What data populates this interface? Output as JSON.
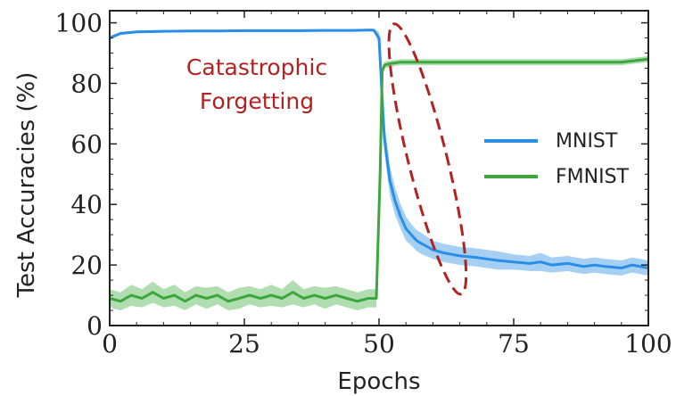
{
  "chart_data": {
    "type": "line",
    "title": "",
    "xlabel": "Epochs",
    "ylabel": "Test Accuracies (%)",
    "xlim": [
      0,
      100
    ],
    "ylim": [
      0,
      104
    ],
    "xticks": [
      0,
      25,
      50,
      75,
      100
    ],
    "yticks": [
      0,
      20,
      40,
      60,
      80,
      100
    ],
    "xtick_labels": [
      "0",
      "25",
      "50",
      "75",
      "100"
    ],
    "ytick_labels": [
      "0",
      "20",
      "40",
      "60",
      "80",
      "100"
    ],
    "grid": false,
    "legend": {
      "placement": "right",
      "entries": [
        "MNIST",
        "FMNIST"
      ]
    },
    "annotation": {
      "lines": [
        "Catastrophic",
        "Forgetting"
      ],
      "color": "#b22222",
      "ellipse_center": [
        59,
        55
      ],
      "ellipse_semi_axes": [
        3.6,
        46
      ],
      "ellipse_rotation_deg": -14
    },
    "series": [
      {
        "name": "MNIST",
        "color": "#2a8ee6",
        "band_color": "#7fbcf0",
        "x": [
          0,
          2,
          5,
          10,
          15,
          20,
          25,
          30,
          35,
          40,
          45,
          48,
          49,
          50,
          50.5,
          51,
          52,
          53,
          54,
          55,
          56,
          57,
          58,
          60,
          62,
          65,
          68,
          70,
          72,
          75,
          78,
          80,
          82,
          85,
          88,
          90,
          92,
          95,
          97,
          100
        ],
        "y": [
          95,
          96.5,
          97,
          97.2,
          97.3,
          97.3,
          97.4,
          97.4,
          97.4,
          97.5,
          97.5,
          97.6,
          97.6,
          95,
          78,
          62,
          48,
          41,
          36,
          32,
          30,
          28,
          27,
          25,
          24,
          23,
          22.5,
          22,
          21.5,
          21,
          20.5,
          21,
          20,
          20.5,
          19.5,
          20,
          19.5,
          19,
          20,
          19
        ],
        "band": [
          0.6,
          0.5,
          0.4,
          0.4,
          0.4,
          0.4,
          0.4,
          0.4,
          0.4,
          0.4,
          0.4,
          0.4,
          0.4,
          2,
          5,
          5,
          5,
          4.5,
          4,
          4,
          3.5,
          3.5,
          3.5,
          3,
          3,
          3,
          3,
          3,
          3,
          2.5,
          2.5,
          3,
          2.5,
          2.5,
          2.5,
          2.5,
          2.5,
          2.5,
          2.5,
          2.5
        ]
      },
      {
        "name": "FMNIST",
        "color": "#3da63d",
        "band_color": "#8fd08f",
        "x": [
          0,
          2,
          4,
          6,
          8,
          10,
          12,
          14,
          16,
          18,
          20,
          22,
          24,
          26,
          28,
          30,
          32,
          34,
          36,
          38,
          40,
          42,
          44,
          46,
          48,
          49.5,
          50.2,
          50.6,
          51,
          52,
          54,
          56,
          60,
          65,
          70,
          75,
          80,
          85,
          90,
          95,
          100
        ],
        "y": [
          9,
          8,
          10,
          9,
          11,
          9,
          10,
          8,
          10,
          9,
          10,
          8,
          9,
          10,
          9,
          10,
          9,
          11,
          9,
          10,
          9,
          10,
          9,
          8,
          9,
          9,
          50,
          84,
          86,
          86.5,
          87,
          87,
          87,
          87,
          87,
          87,
          87,
          87,
          87,
          87,
          88
        ],
        "band": [
          3,
          3,
          3.5,
          3,
          3.5,
          3,
          3.5,
          3,
          3,
          3.5,
          3,
          3,
          3.5,
          3,
          3,
          3.5,
          3,
          4,
          3,
          3,
          3.5,
          3,
          3,
          3,
          3,
          3,
          3,
          1.2,
          1.2,
          1,
          1,
          1,
          1,
          1,
          1,
          1,
          1,
          1,
          1,
          1,
          1
        ]
      }
    ]
  }
}
